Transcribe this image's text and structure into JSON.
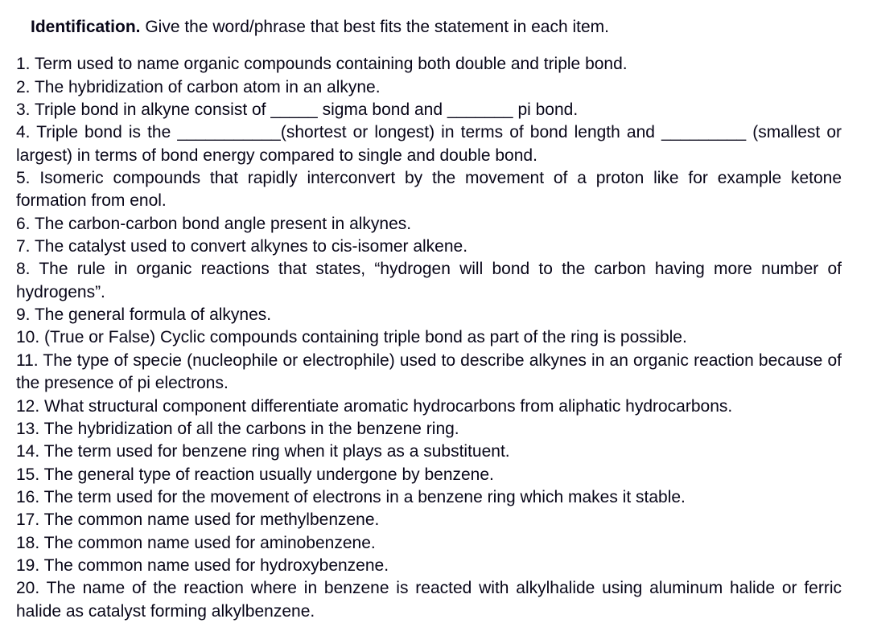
{
  "header": {
    "bold": "Identification.",
    "rest": " Give the word/phrase that best fits the statement in each item."
  },
  "items": {
    "p1": "1. Term used to name organic compounds containing both double and triple bond.",
    "p2": "2. The hybridization of carbon atom in an alkyne.",
    "p3": "3. Triple bond in alkyne consist of _____ sigma bond and _______ pi bond.",
    "p4": "4. Triple bond is the ___________(shortest or longest) in terms of bond length and _________ (smallest or largest) in terms of bond energy compared to single and double bond.",
    "p5": "5. Isomeric compounds that rapidly interconvert by the movement of a proton like for example ketone formation from enol.",
    "p6": "6.  The carbon-carbon bond angle present in alkynes.",
    "p7": "7.  The catalyst used to convert alkynes to cis-isomer alkene.",
    "p8": "8. The rule in organic reactions that states, “hydrogen will bond to the carbon having more number of hydrogens”.",
    "p9": "9. The general formula of alkynes.",
    "p10": "10. (True or False) Cyclic compounds containing triple bond as part of the ring is possible.",
    "p11": "11. The type of specie (nucleophile or electrophile) used to describe alkynes in an organic reaction because of the presence of pi electrons.",
    "p12": "12. What structural component differentiate aromatic hydrocarbons from aliphatic hydrocarbons.",
    "p13": "13. The hybridization of all the carbons in the benzene ring.",
    "p14": "14. The term used for benzene ring when it plays as a substituent.",
    "p15": "15. The general type of reaction usually undergone by benzene.",
    "p16": "16. The term used for the movement of electrons in a benzene ring which makes it stable.",
    "p17": "17. The common name used for methylbenzene.",
    "p18": "18. The common name used for aminobenzene.",
    "p19": "19. The common name used for hydroxybenzene.",
    "p20": "20. The name of the reaction where in benzene is reacted with alkylhalide using aluminum halide or ferric halide as catalyst forming alkylbenzene."
  }
}
